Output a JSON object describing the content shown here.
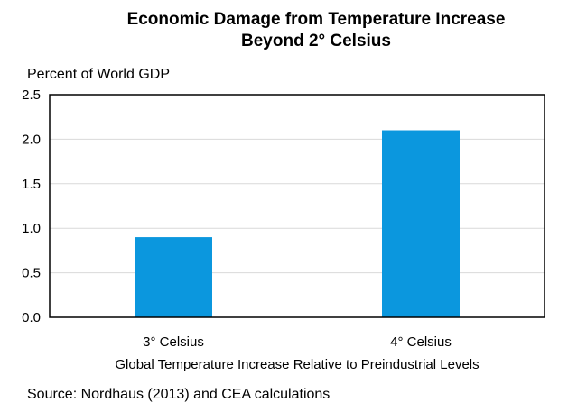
{
  "chart_data": {
    "type": "bar",
    "title_line1": "Economic Damage from Temperature Increase",
    "title_line2": "Beyond 2° Celsius",
    "ylabel": "Percent of World GDP",
    "xlabel": "Global Temperature Increase Relative to Preindustrial Levels",
    "categories": [
      "3° Celsius",
      "4° Celsius"
    ],
    "values": [
      0.9,
      2.1
    ],
    "ylim": [
      0,
      2.5
    ],
    "yticks": [
      "0.0",
      "0.5",
      "1.0",
      "1.5",
      "2.0",
      "2.5"
    ],
    "ytick_values": [
      0,
      0.5,
      1.0,
      1.5,
      2.0,
      2.5
    ],
    "bar_color": "#0b97de",
    "grid": true,
    "grid_color": "#d9d9d9"
  },
  "source": "Source: Nordhaus (2013) and CEA calculations"
}
